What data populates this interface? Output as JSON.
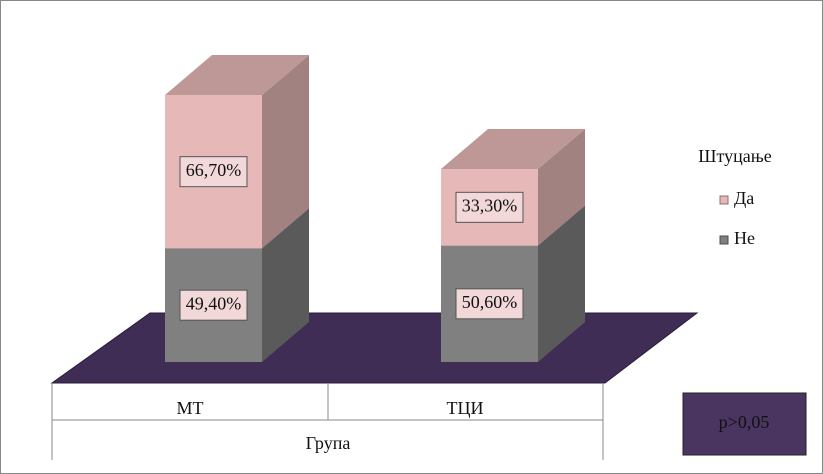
{
  "chart_data": {
    "type": "bar",
    "stacked": true,
    "categories": [
      "МТ",
      "ТЦИ"
    ],
    "xlabel": "Група",
    "legend_title": "Штуцање",
    "annotation": "p>0,05",
    "series": [
      {
        "name": "Не",
        "color": "#808080",
        "values": [
          49.4,
          50.6
        ],
        "value_labels": [
          "49,40%",
          "50,60%"
        ]
      },
      {
        "name": "Да",
        "color": "#e6b9b8",
        "values": [
          66.7,
          33.3
        ],
        "value_labels": [
          "66,70%",
          "33,30%"
        ]
      }
    ]
  }
}
